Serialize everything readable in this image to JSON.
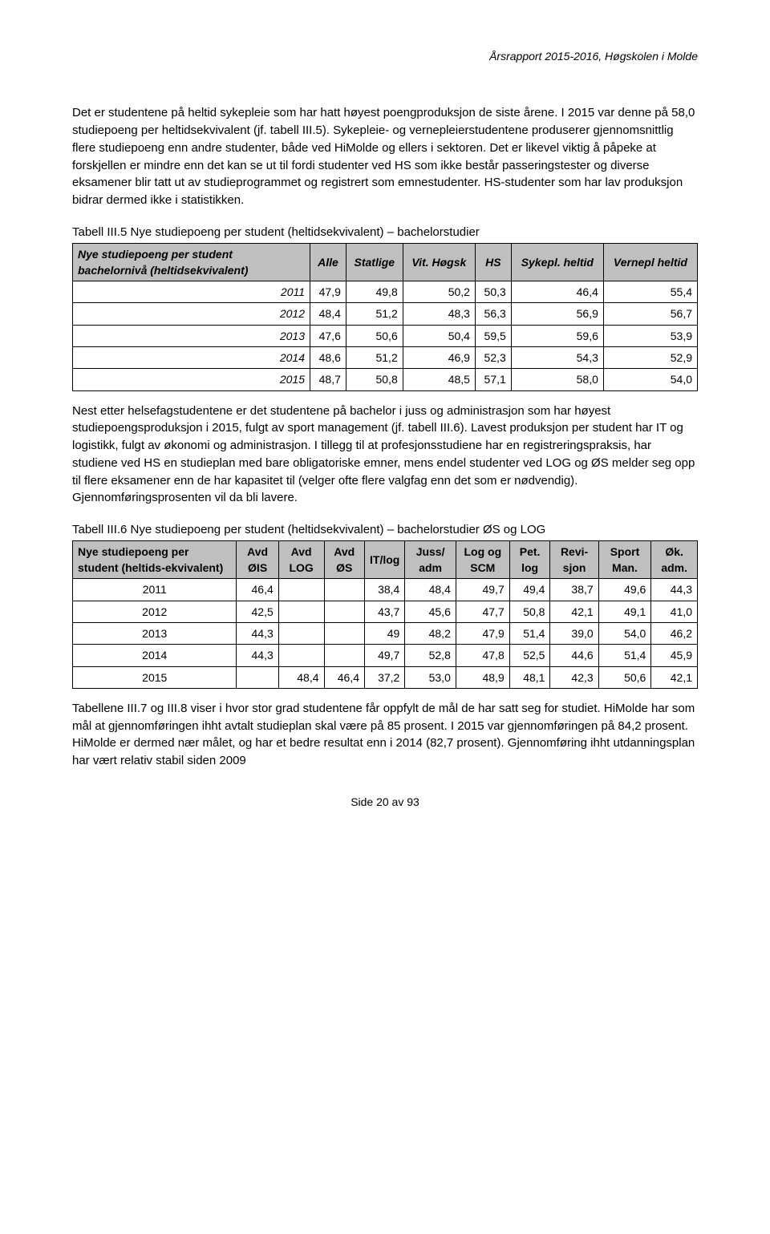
{
  "header": "Årsrapport 2015-2016, Høgskolen i Molde",
  "para1": "Det er studentene på heltid sykepleie som har hatt høyest poengproduksjon de siste årene.  I 2015 var denne på 58,0 studiepoeng per heltidsekvivalent (jf. tabell III.5). Sykepleie- og vernepleierstudentene produserer gjennomsnittlig flere studiepoeng enn andre studenter, både ved HiMolde og ellers i sektoren. Det er likevel viktig å påpeke at forskjellen er mindre enn det kan se ut til fordi studenter ved HS som ikke består passeringstester og diverse eksamener blir tatt ut av studieprogrammet og registrert som emnestudenter. HS-studenter som har lav produksjon bidrar dermed ikke i statistikken.",
  "table1": {
    "caption": "Tabell III.5 Nye studiepoeng per student (heltidsekvivalent) – bachelorstudier",
    "columns": [
      "Nye studiepoeng per student bachelornivå (heltidsekvivalent)",
      "Alle",
      "Statlige",
      "Vit. Høgsk",
      "HS",
      "Sykepl. heltid",
      "Vernepl heltid"
    ],
    "rows": [
      [
        "2011",
        "47,9",
        "49,8",
        "50,2",
        "50,3",
        "46,4",
        "55,4"
      ],
      [
        "2012",
        "48,4",
        "51,2",
        "48,3",
        "56,3",
        "56,9",
        "56,7"
      ],
      [
        "2013",
        "47,6",
        "50,6",
        "50,4",
        "59,5",
        "59,6",
        "53,9"
      ],
      [
        "2014",
        "48,6",
        "51,2",
        "46,9",
        "52,3",
        "54,3",
        "52,9"
      ],
      [
        "2015",
        "48,7",
        "50,8",
        "48,5",
        "57,1",
        "58,0",
        "54,0"
      ]
    ]
  },
  "para2": "Nest etter helsefagstudentene er det studentene på bachelor i juss og administrasjon som har høyest studiepoengsproduksjon i 2015, fulgt av sport management (jf. tabell III.6). Lavest produksjon per student har IT og logistikk, fulgt av økonomi og administrasjon. I tillegg til at profesjonsstudiene har en registreringspraksis, har studiene ved HS en studieplan med bare obligatoriske emner, mens endel studenter ved LOG og ØS melder seg opp til flere eksamener enn de har kapasitet til (velger ofte flere valgfag enn det som er nødvendig). Gjennomføringsprosenten vil da bli lavere.",
  "table2": {
    "caption": "Tabell III.6 Nye studiepoeng per student (heltidsekvivalent) – bachelorstudier ØS og LOG",
    "columns": [
      "Nye studiepoeng per student (heltids-ekvivalent)",
      "Avd ØIS",
      "Avd LOG",
      "Avd ØS",
      "IT/log",
      "Juss/ adm",
      "Log og SCM",
      "Pet. log",
      "Revi-sjon",
      "Sport Man.",
      "Øk. adm."
    ],
    "rows": [
      [
        "2011",
        "46,4",
        "",
        "",
        "38,4",
        "48,4",
        "49,7",
        "49,4",
        "38,7",
        "49,6",
        "44,3"
      ],
      [
        "2012",
        "42,5",
        "",
        "",
        "43,7",
        "45,6",
        "47,7",
        "50,8",
        "42,1",
        "49,1",
        "41,0"
      ],
      [
        "2013",
        "44,3",
        "",
        "",
        "49",
        "48,2",
        "47,9",
        "51,4",
        "39,0",
        "54,0",
        "46,2"
      ],
      [
        "2014",
        "44,3",
        "",
        "",
        "49,7",
        "52,8",
        "47,8",
        "52,5",
        "44,6",
        "51,4",
        "45,9"
      ],
      [
        "2015",
        "",
        "48,4",
        "46,4",
        "37,2",
        "53,0",
        "48,9",
        "48,1",
        "42,3",
        "50,6",
        "42,1"
      ]
    ]
  },
  "para3": "Tabellene III.7 og III.8 viser i hvor stor grad studentene får oppfylt de mål de har satt seg for studiet. HiMolde har som mål at gjennomføringen ihht avtalt studieplan skal være på 85 prosent. I 2015 var gjennomføringen på 84,2 prosent. HiMolde er dermed nær målet, og har et bedre resultat enn i 2014 (82,7 prosent). Gjennomføring ihht utdanningsplan har vært relativ stabil siden 2009",
  "footer": "Side 20 av 93"
}
